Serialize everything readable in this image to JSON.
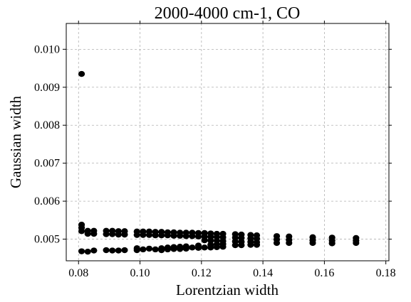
{
  "chart_data": {
    "type": "scatter",
    "title": "2000-4000 cm-1, CO",
    "xlabel": "Lorentzian width",
    "ylabel": "Gaussian width",
    "xlim": [
      0.076,
      0.181
    ],
    "ylim": [
      0.00443,
      0.01068
    ],
    "grid": true,
    "x_ticks": [
      0.08,
      0.1,
      0.12,
      0.14,
      0.16,
      0.18
    ],
    "x_tick_labels": [
      "0.08",
      "0.10",
      "0.12",
      "0.14",
      "0.16",
      "0.18"
    ],
    "y_ticks": [
      0.005,
      0.006,
      0.007,
      0.008,
      0.009,
      0.01
    ],
    "y_tick_labels": [
      "0.005",
      "0.006",
      "0.007",
      "0.008",
      "0.009",
      "0.010"
    ],
    "marker_color": "#000000",
    "points": [
      [
        0.081,
        0.00935
      ],
      [
        0.081,
        0.00538
      ],
      [
        0.081,
        0.0053
      ],
      [
        0.081,
        0.00521
      ],
      [
        0.081,
        0.00468
      ],
      [
        0.083,
        0.00522
      ],
      [
        0.083,
        0.00514
      ],
      [
        0.083,
        0.00467
      ],
      [
        0.085,
        0.00522
      ],
      [
        0.085,
        0.00514
      ],
      [
        0.085,
        0.0047
      ],
      [
        0.089,
        0.00522
      ],
      [
        0.089,
        0.00513
      ],
      [
        0.089,
        0.00471
      ],
      [
        0.091,
        0.00522
      ],
      [
        0.091,
        0.00513
      ],
      [
        0.091,
        0.0047
      ],
      [
        0.093,
        0.00521
      ],
      [
        0.093,
        0.00512
      ],
      [
        0.093,
        0.0047
      ],
      [
        0.095,
        0.00521
      ],
      [
        0.095,
        0.00512
      ],
      [
        0.095,
        0.00471
      ],
      [
        0.099,
        0.0052
      ],
      [
        0.099,
        0.00511
      ],
      [
        0.099,
        0.00471
      ],
      [
        0.099,
        0.00476
      ],
      [
        0.101,
        0.0052
      ],
      [
        0.101,
        0.00511
      ],
      [
        0.101,
        0.00473
      ],
      [
        0.103,
        0.0052
      ],
      [
        0.103,
        0.00511
      ],
      [
        0.103,
        0.00475
      ],
      [
        0.105,
        0.00519
      ],
      [
        0.105,
        0.0051
      ],
      [
        0.105,
        0.00473
      ],
      [
        0.107,
        0.00519
      ],
      [
        0.107,
        0.0051
      ],
      [
        0.107,
        0.00471
      ],
      [
        0.107,
        0.00476
      ],
      [
        0.109,
        0.00518
      ],
      [
        0.109,
        0.0051
      ],
      [
        0.109,
        0.00473
      ],
      [
        0.109,
        0.00478
      ],
      [
        0.111,
        0.00518
      ],
      [
        0.111,
        0.00509
      ],
      [
        0.111,
        0.00474
      ],
      [
        0.111,
        0.00479
      ],
      [
        0.113,
        0.00517
      ],
      [
        0.113,
        0.00509
      ],
      [
        0.113,
        0.00474
      ],
      [
        0.113,
        0.0048
      ],
      [
        0.115,
        0.00517
      ],
      [
        0.115,
        0.00508
      ],
      [
        0.115,
        0.00475
      ],
      [
        0.115,
        0.00481
      ],
      [
        0.117,
        0.00517
      ],
      [
        0.117,
        0.00508
      ],
      [
        0.117,
        0.00478
      ],
      [
        0.119,
        0.00516
      ],
      [
        0.119,
        0.00507
      ],
      [
        0.119,
        0.00477
      ],
      [
        0.119,
        0.00483
      ],
      [
        0.121,
        0.00516
      ],
      [
        0.121,
        0.00507
      ],
      [
        0.121,
        0.00497
      ],
      [
        0.121,
        0.00478
      ],
      [
        0.123,
        0.00515
      ],
      [
        0.123,
        0.00506
      ],
      [
        0.123,
        0.00496
      ],
      [
        0.123,
        0.00485
      ],
      [
        0.123,
        0.00478
      ],
      [
        0.125,
        0.00514
      ],
      [
        0.125,
        0.00506
      ],
      [
        0.125,
        0.00496
      ],
      [
        0.125,
        0.00486
      ],
      [
        0.125,
        0.00479
      ],
      [
        0.127,
        0.00514
      ],
      [
        0.127,
        0.00505
      ],
      [
        0.127,
        0.00495
      ],
      [
        0.127,
        0.00487
      ],
      [
        0.127,
        0.0048
      ],
      [
        0.131,
        0.00513
      ],
      [
        0.131,
        0.00504
      ],
      [
        0.131,
        0.00494
      ],
      [
        0.131,
        0.00484
      ],
      [
        0.133,
        0.00512
      ],
      [
        0.133,
        0.00503
      ],
      [
        0.133,
        0.00493
      ],
      [
        0.133,
        0.00484
      ],
      [
        0.136,
        0.00511
      ],
      [
        0.136,
        0.00502
      ],
      [
        0.136,
        0.00493
      ],
      [
        0.136,
        0.00485
      ],
      [
        0.138,
        0.0051
      ],
      [
        0.138,
        0.00501
      ],
      [
        0.138,
        0.00492
      ],
      [
        0.138,
        0.00485
      ],
      [
        0.1445,
        0.00508
      ],
      [
        0.1445,
        0.00499
      ],
      [
        0.1445,
        0.0049
      ],
      [
        0.1485,
        0.00507
      ],
      [
        0.1485,
        0.00498
      ],
      [
        0.1485,
        0.0049
      ],
      [
        0.1562,
        0.00505
      ],
      [
        0.1562,
        0.00497
      ],
      [
        0.1562,
        0.0049
      ],
      [
        0.1625,
        0.00504
      ],
      [
        0.1625,
        0.00496
      ],
      [
        0.1625,
        0.00489
      ],
      [
        0.1703,
        0.00503
      ],
      [
        0.1703,
        0.00496
      ],
      [
        0.1703,
        0.0049
      ]
    ]
  }
}
